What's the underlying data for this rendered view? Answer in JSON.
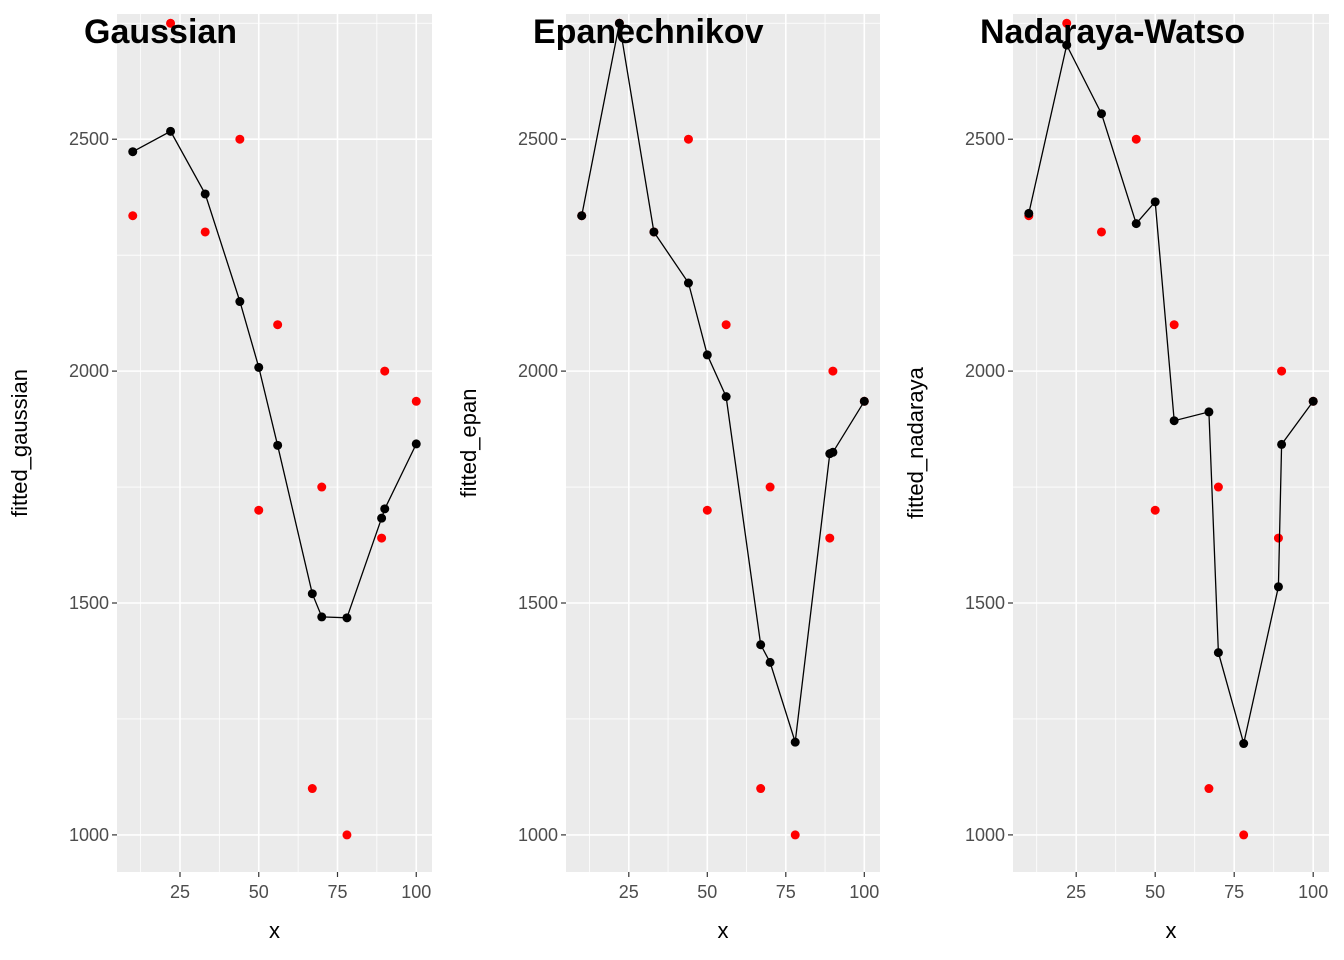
{
  "colors": {
    "observed_points": "#FF0000",
    "fitted_points": "#000000",
    "panel_background": "#EBEBEB",
    "grid": "#FFFFFF"
  },
  "chart_data": [
    {
      "type": "scatter",
      "title": "Gaussian",
      "xlabel": "x",
      "ylabel": "fitted_gaussian",
      "xlim": [
        5,
        105
      ],
      "ylim": [
        920,
        2770
      ],
      "x_ticks": [
        25,
        50,
        75,
        100
      ],
      "y_ticks": [
        1000,
        1500,
        2000,
        2500
      ],
      "grid": true,
      "series": [
        {
          "style": "points",
          "color": "#FF0000",
          "points": [
            [
              10,
              2335
            ],
            [
              22,
              2750
            ],
            [
              33,
              2300
            ],
            [
              44,
              2500
            ],
            [
              50,
              1700
            ],
            [
              56,
              2100
            ],
            [
              67,
              1100
            ],
            [
              70,
              1750
            ],
            [
              78,
              1000
            ],
            [
              89,
              1640
            ],
            [
              90,
              2000
            ],
            [
              100,
              1935
            ]
          ]
        },
        {
          "style": "line+points",
          "color": "#000000",
          "points": [
            [
              10,
              2473
            ],
            [
              22,
              2517
            ],
            [
              33,
              2382
            ],
            [
              44,
              2150
            ],
            [
              50,
              2008
            ],
            [
              56,
              1840
            ],
            [
              67,
              1520
            ],
            [
              70,
              1470
            ],
            [
              78,
              1468
            ],
            [
              89,
              1683
            ],
            [
              90,
              1703
            ],
            [
              100,
              1843
            ]
          ]
        }
      ]
    },
    {
      "type": "scatter",
      "title": "Epanechnikov",
      "xlabel": "x",
      "ylabel": "fitted_epan",
      "xlim": [
        5,
        105
      ],
      "ylim": [
        920,
        2770
      ],
      "x_ticks": [
        25,
        50,
        75,
        100
      ],
      "y_ticks": [
        1000,
        1500,
        2000,
        2500
      ],
      "grid": true,
      "series": [
        {
          "style": "points",
          "color": "#FF0000",
          "points": [
            [
              10,
              2335
            ],
            [
              22,
              2750
            ],
            [
              33,
              2300
            ],
            [
              44,
              2500
            ],
            [
              50,
              1700
            ],
            [
              56,
              2100
            ],
            [
              67,
              1100
            ],
            [
              70,
              1750
            ],
            [
              78,
              1000
            ],
            [
              89,
              1640
            ],
            [
              90,
              2000
            ],
            [
              100,
              1935
            ]
          ]
        },
        {
          "style": "line+points",
          "color": "#000000",
          "points": [
            [
              10,
              2335
            ],
            [
              22,
              2750
            ],
            [
              33,
              2300
            ],
            [
              44,
              2190
            ],
            [
              50,
              2035
            ],
            [
              56,
              1945
            ],
            [
              67,
              1410
            ],
            [
              70,
              1372
            ],
            [
              78,
              1200
            ],
            [
              89,
              1822
            ],
            [
              90,
              1825
            ],
            [
              100,
              1935
            ]
          ]
        }
      ]
    },
    {
      "type": "scatter",
      "title": "Nadaraya-Watso",
      "xlabel": "x",
      "ylabel": "fitted_nadaraya",
      "xlim": [
        5,
        105
      ],
      "ylim": [
        920,
        2770
      ],
      "x_ticks": [
        25,
        50,
        75,
        100
      ],
      "y_ticks": [
        1000,
        1500,
        2000,
        2500
      ],
      "grid": true,
      "series": [
        {
          "style": "points",
          "color": "#FF0000",
          "points": [
            [
              10,
              2335
            ],
            [
              22,
              2750
            ],
            [
              33,
              2300
            ],
            [
              44,
              2500
            ],
            [
              50,
              1700
            ],
            [
              56,
              2100
            ],
            [
              67,
              1100
            ],
            [
              70,
              1750
            ],
            [
              78,
              1000
            ],
            [
              89,
              1640
            ],
            [
              90,
              2000
            ],
            [
              100,
              1935
            ]
          ]
        },
        {
          "style": "line+points",
          "color": "#000000",
          "points": [
            [
              10,
              2340
            ],
            [
              22,
              2703
            ],
            [
              33,
              2555
            ],
            [
              44,
              2318
            ],
            [
              50,
              2365
            ],
            [
              56,
              1893
            ],
            [
              67,
              1912
            ],
            [
              70,
              1393
            ],
            [
              78,
              1197
            ],
            [
              89,
              1535
            ],
            [
              90,
              1842
            ],
            [
              100,
              1935
            ]
          ]
        }
      ]
    }
  ]
}
